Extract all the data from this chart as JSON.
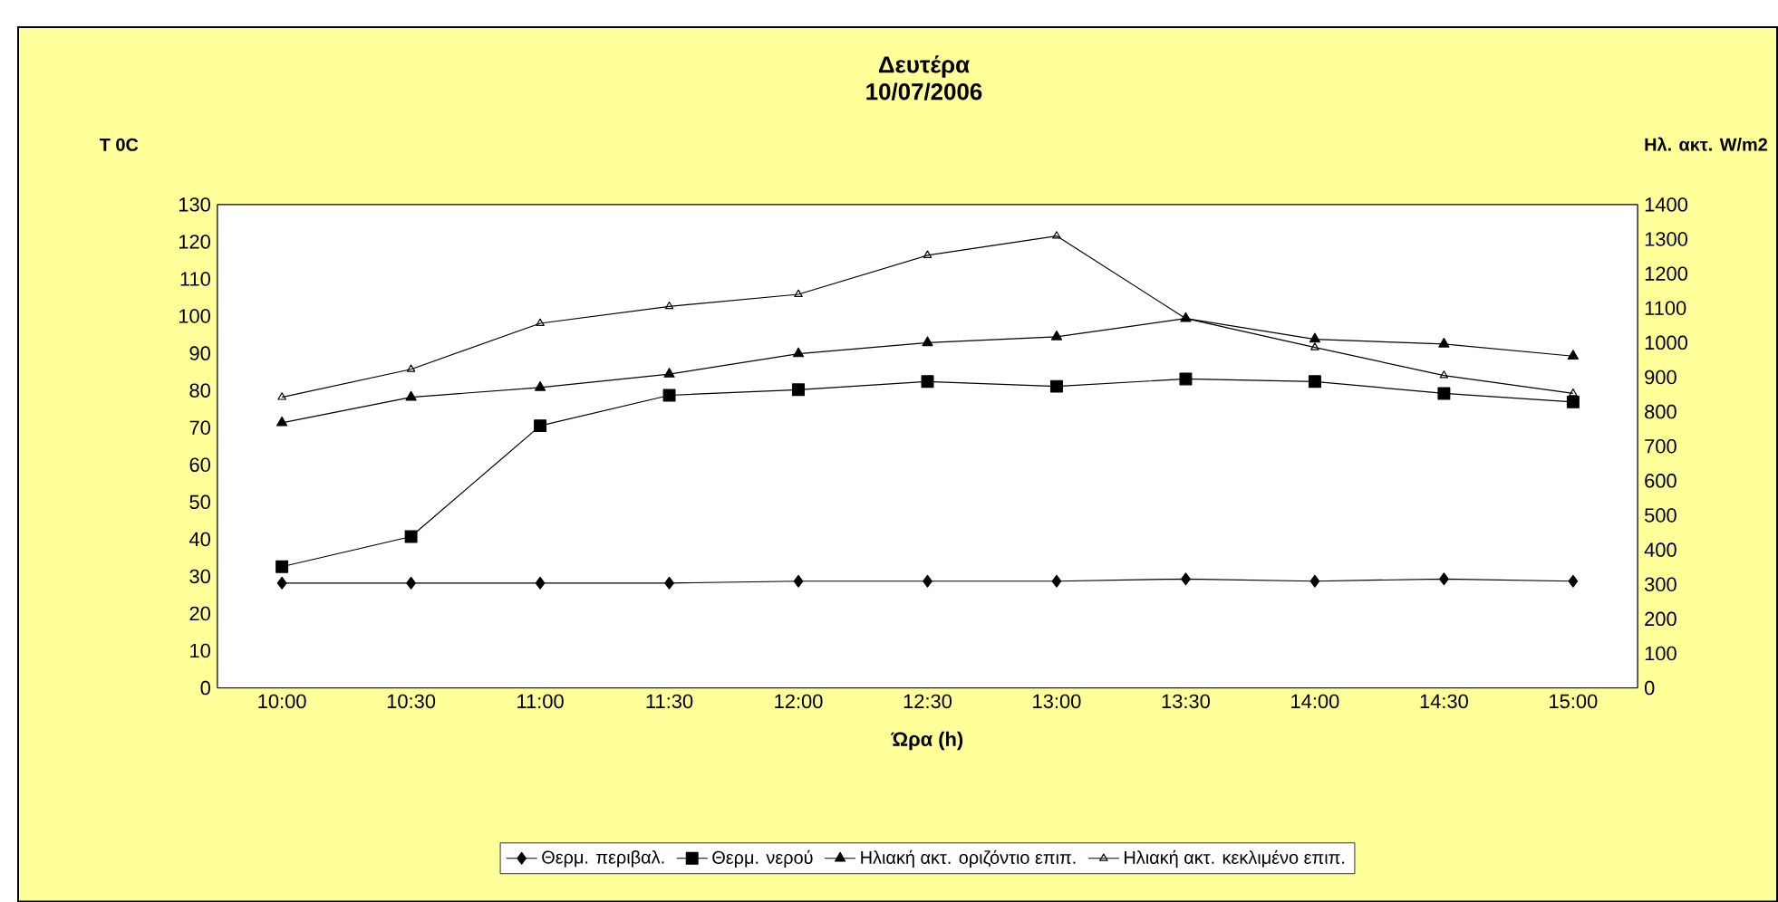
{
  "chart_data": {
    "type": "line",
    "title": "Δευτέρα",
    "subtitle": "10/07/2006",
    "xlabel": "Ώρα (h)",
    "ylabel": "T 0C",
    "y2label": "Ηλ. ακτ. W/m2",
    "categories": [
      "10:00",
      "10:30",
      "11:00",
      "11:30",
      "12:00",
      "12:30",
      "13:00",
      "13:30",
      "14:00",
      "14:30",
      "15:00"
    ],
    "series": [
      {
        "name": "Θερμ. περιβαλ.",
        "color": "#000000",
        "marker": "diamond",
        "values": [
          28.2,
          28.2,
          28.2,
          28.2,
          28.7,
          28.7,
          28.7,
          29.3,
          28.7,
          29.3,
          28.7
        ]
      },
      {
        "name": "Θερμ. νερού",
        "color": "#000000",
        "marker": "square",
        "values": [
          32.6,
          40.7,
          70.5,
          78.7,
          80.2,
          82.4,
          81.1,
          83.1,
          82.4,
          79.2,
          76.9
        ]
      },
      {
        "name": "Ηλιακή ακτ. οριζόντιο επιπ.",
        "color": "#000000",
        "marker": "triangle",
        "axis": "y2",
        "values": [
          768,
          842,
          870,
          909,
          968,
          1000,
          1017,
          1070,
          1010,
          996,
          961
        ]
      },
      {
        "name": "Ηλιακή ακτ. κεκλιμένο επιπ.",
        "color": "#000000",
        "marker": "triangle-open",
        "axis": "y2",
        "values": [
          842,
          923,
          1056,
          1105,
          1140,
          1253,
          1309,
          1070,
          986,
          905,
          853
        ]
      }
    ],
    "ylim": [
      0,
      130
    ],
    "yticks": [
      0,
      10,
      20,
      30,
      40,
      50,
      60,
      70,
      80,
      90,
      100,
      110,
      120,
      130
    ],
    "y2lim": [
      0,
      1400
    ],
    "y2ticks": [
      0,
      100,
      200,
      300,
      400,
      500,
      600,
      700,
      800,
      900,
      1000,
      1100,
      1200,
      1300,
      1400
    ],
    "grid": false,
    "legend": "bottom",
    "line_style": "solid"
  }
}
